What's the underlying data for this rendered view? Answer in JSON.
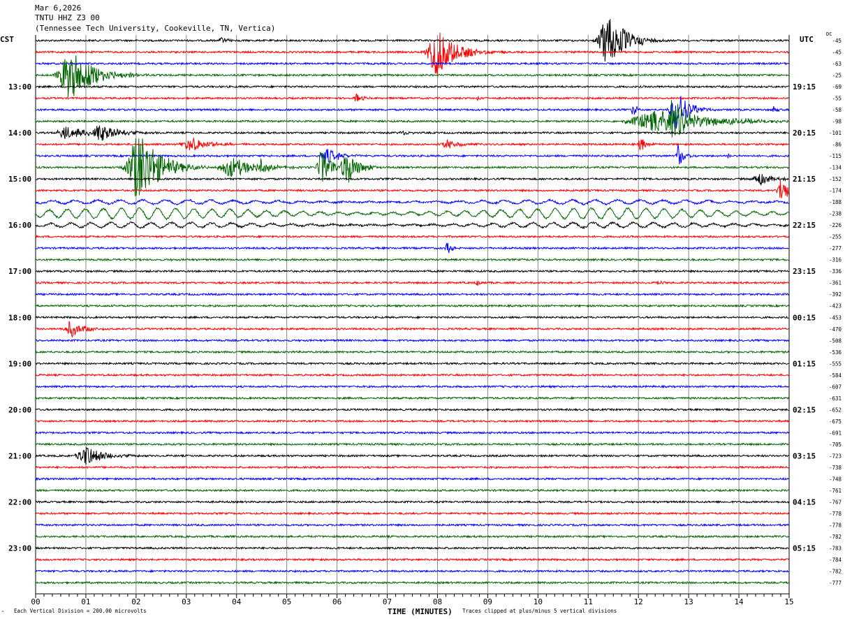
{
  "header": {
    "date": "Mar 6,2026",
    "station": "TNTU HHZ Z3 00",
    "location": "(Tennessee Tech University, Cookeville, TN, Vertica)"
  },
  "chart_data": {
    "type": "line",
    "title": "TNTU HHZ Z3 00",
    "xlabel": "TIME (MINUTES)",
    "xlim": [
      0,
      15
    ],
    "x_ticks": [
      "00",
      "01",
      "02",
      "03",
      "04",
      "05",
      "06",
      "07",
      "08",
      "09",
      "10",
      "11",
      "12",
      "13",
      "14",
      "15"
    ],
    "left_axis_label": "CST",
    "right_axis_label": "UTC",
    "dc_label": "DC",
    "left_time_labels": [
      {
        "trace": 4,
        "label": "13:00"
      },
      {
        "trace": 8,
        "label": "14:00"
      },
      {
        "trace": 12,
        "label": "15:00"
      },
      {
        "trace": 16,
        "label": "16:00"
      },
      {
        "trace": 20,
        "label": "17:00"
      },
      {
        "trace": 24,
        "label": "18:00"
      },
      {
        "trace": 28,
        "label": "19:00"
      },
      {
        "trace": 32,
        "label": "20:00"
      },
      {
        "trace": 36,
        "label": "21:00"
      },
      {
        "trace": 40,
        "label": "22:00"
      },
      {
        "trace": 44,
        "label": "23:00"
      }
    ],
    "right_time_labels": [
      {
        "trace": 4,
        "label": "19:15"
      },
      {
        "trace": 8,
        "label": "20:15"
      },
      {
        "trace": 12,
        "label": "21:15"
      },
      {
        "trace": 16,
        "label": "22:15"
      },
      {
        "trace": 20,
        "label": "23:15"
      },
      {
        "trace": 24,
        "label": "00:15"
      },
      {
        "trace": 28,
        "label": "01:15"
      },
      {
        "trace": 32,
        "label": "02:15"
      },
      {
        "trace": 36,
        "label": "03:15"
      },
      {
        "trace": 40,
        "label": "04:15"
      },
      {
        "trace": 44,
        "label": "05:15"
      }
    ],
    "dc_offsets": [
      "-45",
      "-45",
      "-63",
      "-25",
      "-69",
      "-55",
      "-58",
      "-98",
      "-101",
      "-86",
      "-115",
      "-134",
      "-152",
      "-174",
      "-188",
      "-238",
      "-226",
      "-255",
      "-277",
      "-316",
      "-336",
      "-361",
      "-392",
      "-423",
      "-453",
      "-470",
      "-508",
      "-536",
      "-555",
      "-584",
      "-607",
      "-631",
      "-652",
      "-675",
      "-691",
      "-705",
      "-723",
      "-738",
      "-748",
      "-761",
      "-767",
      "-778",
      "-778",
      "-782",
      "-783",
      "-784",
      "-782",
      "-777"
    ],
    "trace_colors": [
      "#000000",
      "#ff0000",
      "#0000ff",
      "#006400"
    ],
    "trace_count": 48,
    "events": [
      {
        "trace": 0,
        "minute": 11.4,
        "amp": 5,
        "width": 0.3
      },
      {
        "trace": 0,
        "minute": 3.7,
        "amp": 0.6,
        "width": 0.1
      },
      {
        "trace": 1,
        "minute": 8.0,
        "amp": 4,
        "width": 0.35
      },
      {
        "trace": 3,
        "minute": 0.7,
        "amp": 4.5,
        "width": 0.4
      },
      {
        "trace": 5,
        "minute": 6.4,
        "amp": 0.8,
        "width": 0.1
      },
      {
        "trace": 5,
        "minute": 8.8,
        "amp": 0.6,
        "width": 0.05
      },
      {
        "trace": 6,
        "minute": 11.9,
        "amp": 1.5,
        "width": 0.06
      },
      {
        "trace": 6,
        "minute": 12.75,
        "amp": 4,
        "width": 0.2
      },
      {
        "trace": 6,
        "minute": 14.7,
        "amp": 0.8,
        "width": 0.05
      },
      {
        "trace": 7,
        "minute": 12.4,
        "amp": 1.8,
        "width": 1.0
      },
      {
        "trace": 7,
        "minute": 12.7,
        "amp": 3,
        "width": 0.25
      },
      {
        "trace": 8,
        "minute": 0.6,
        "amp": 1.2,
        "width": 0.3
      },
      {
        "trace": 8,
        "minute": 1.3,
        "amp": 1.5,
        "width": 0.3
      },
      {
        "trace": 8,
        "minute": 7.3,
        "amp": 0.5,
        "width": 0.1
      },
      {
        "trace": 9,
        "minute": 3.1,
        "amp": 1.3,
        "width": 0.3
      },
      {
        "trace": 9,
        "minute": 8.2,
        "amp": 0.8,
        "width": 0.2
      },
      {
        "trace": 9,
        "minute": 12.05,
        "amp": 1.2,
        "width": 0.1
      },
      {
        "trace": 10,
        "minute": 5.8,
        "amp": 1.5,
        "width": 0.2
      },
      {
        "trace": 10,
        "minute": 12.8,
        "amp": 2,
        "width": 0.1
      },
      {
        "trace": 10,
        "minute": 13.8,
        "amp": 0.6,
        "width": 0.05
      },
      {
        "trace": 11,
        "minute": 2.05,
        "amp": 7,
        "width": 0.35
      },
      {
        "trace": 11,
        "minute": 3.9,
        "amp": 1.8,
        "width": 0.4
      },
      {
        "trace": 11,
        "minute": 4.5,
        "amp": 1.5,
        "width": 0.1
      },
      {
        "trace": 11,
        "minute": 5.7,
        "amp": 3.5,
        "width": 0.15
      },
      {
        "trace": 11,
        "minute": 6.2,
        "amp": 3,
        "width": 0.2
      },
      {
        "trace": 12,
        "minute": 14.4,
        "amp": 1.3,
        "width": 0.2
      },
      {
        "trace": 13,
        "minute": 14.85,
        "amp": 2.2,
        "width": 0.15
      },
      {
        "trace": 18,
        "minute": 8.2,
        "amp": 1.0,
        "width": 0.08
      },
      {
        "trace": 21,
        "minute": 8.8,
        "amp": 0.6,
        "width": 0.05
      },
      {
        "trace": 21,
        "minute": 12.4,
        "amp": 0.6,
        "width": 0.05
      },
      {
        "trace": 25,
        "minute": 0.7,
        "amp": 1.5,
        "width": 0.2
      },
      {
        "trace": 36,
        "minute": 1.0,
        "amp": 1.8,
        "width": 0.3
      }
    ],
    "long_period": [
      {
        "trace": 14,
        "amp": 1.0,
        "period_min": 0.45
      },
      {
        "trace": 15,
        "amp": 2.5,
        "period_min": 0.36
      },
      {
        "trace": 16,
        "amp": 1.2,
        "period_min": 0.4
      }
    ],
    "footer_scale": "Each Vertical Division =  200.00 microvolts",
    "footer_clip": "Traces clipped at plus/minus 5 vertical divisions",
    "footer_mark": "^"
  }
}
